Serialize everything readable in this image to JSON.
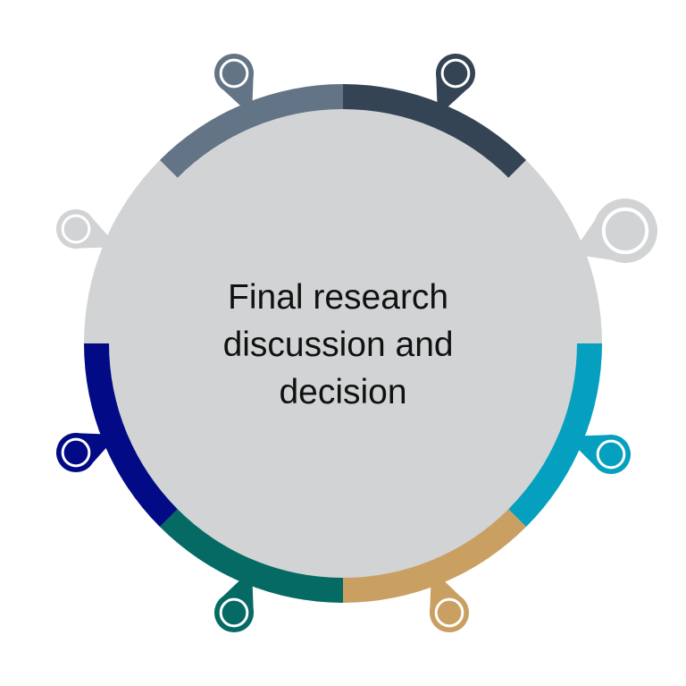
{
  "diagram": {
    "center_text_lines": [
      "Final research",
      "discussion and",
      "decision"
    ],
    "colors": {
      "disc": "#d1d3d4",
      "background": "#ffffff",
      "text": "#111111"
    },
    "ring_segments": [
      {
        "name": "slate-gray",
        "color": "#647487"
      },
      {
        "name": "dark-slate",
        "color": "#354454"
      },
      {
        "name": "light-gray",
        "color": "#d1d3d4"
      },
      {
        "name": "teal-blue",
        "color": "#05a0bf"
      },
      {
        "name": "tan",
        "color": "#c9a062"
      },
      {
        "name": "dark-teal",
        "color": "#056a63"
      },
      {
        "name": "navy",
        "color": "#030a85"
      },
      {
        "name": "light-gray-2",
        "color": "#d1d3d4"
      }
    ],
    "markers": [
      {
        "name": "marker-slate-gray",
        "color": "#647487",
        "icon": "map-pin-icon"
      },
      {
        "name": "marker-dark-slate",
        "color": "#354454",
        "icon": "map-pin-icon"
      },
      {
        "name": "marker-light-gray-right",
        "color": "#d1d3d4",
        "icon": "map-pin-icon"
      },
      {
        "name": "marker-teal-blue",
        "color": "#05a0bf",
        "icon": "map-pin-icon"
      },
      {
        "name": "marker-tan",
        "color": "#c9a062",
        "icon": "map-pin-icon"
      },
      {
        "name": "marker-dark-teal",
        "color": "#056a63",
        "icon": "map-pin-icon"
      },
      {
        "name": "marker-navy",
        "color": "#030a85",
        "icon": "map-pin-icon"
      },
      {
        "name": "marker-light-gray-left",
        "color": "#d1d3d4",
        "icon": "map-pin-icon"
      }
    ]
  }
}
